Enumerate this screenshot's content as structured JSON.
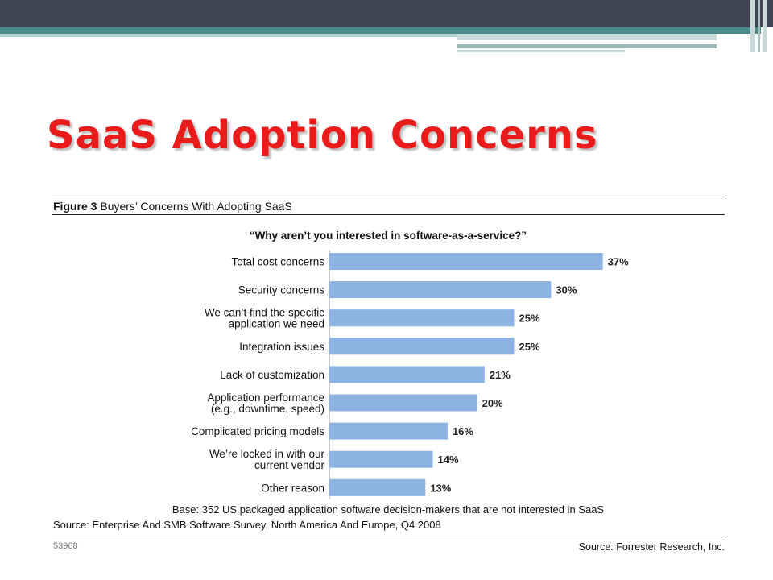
{
  "slide": {
    "title": "SaaS Adoption Concerns"
  },
  "figure": {
    "caption_prefix": "Figure 3",
    "caption_text": " Buyers’ Concerns With Adopting SaaS",
    "question": "“Why aren’t you interested in software-as-a-service?”",
    "base_note": "Base: 352 US packaged application software decision-makers that are not interested in SaaS",
    "source_survey": "Source: Enterprise And SMB Software Survey, North America And Europe, Q4 2008",
    "doc_code": "53968",
    "source_org": "Source: Forrester Research, Inc."
  },
  "colors": {
    "bar": "#8db3e2",
    "title": "#ea1b1b",
    "header": "#404556",
    "stripe": "#4b8a8a"
  },
  "chart_data": {
    "type": "bar",
    "orientation": "horizontal",
    "categories": [
      [
        "Total cost concerns"
      ],
      [
        "Security concerns"
      ],
      [
        "We can’t find the specific",
        "application we need"
      ],
      [
        "Integration issues"
      ],
      [
        "Lack of customization"
      ],
      [
        "Application performance",
        "(e.g., downtime, speed)"
      ],
      [
        "Complicated pricing models"
      ],
      [
        "We’re locked in with our",
        "current vendor"
      ],
      [
        "Other reason"
      ]
    ],
    "values": [
      37,
      30,
      25,
      25,
      21,
      20,
      16,
      14,
      13
    ],
    "value_labels": [
      "37%",
      "30%",
      "25%",
      "25%",
      "21%",
      "20%",
      "16%",
      "14%",
      "13%"
    ],
    "unit": "%",
    "grid": false,
    "legend": "none"
  }
}
